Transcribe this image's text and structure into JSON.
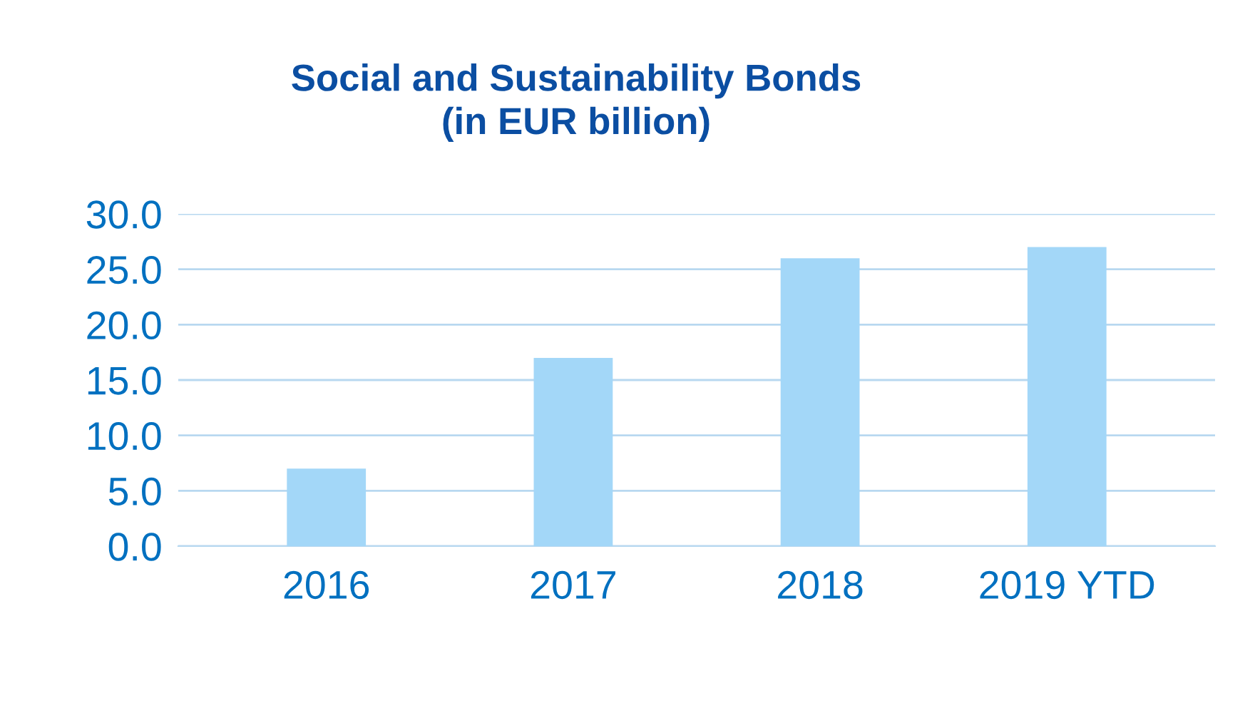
{
  "chart_data": {
    "type": "bar",
    "title": "Social and Sustainability Bonds\n(in EUR billion)",
    "categories": [
      "2016",
      "2017",
      "2018",
      "2019 YTD"
    ],
    "values": [
      7.0,
      17.0,
      26.0,
      27.0
    ],
    "color": "#a3d7f8",
    "ylim": [
      0,
      30
    ],
    "yticks": [
      {
        "value": 0,
        "label": "0.0"
      },
      {
        "value": 5,
        "label": "5.0"
      },
      {
        "value": 10,
        "label": "10.0"
      },
      {
        "value": 15,
        "label": "15.0"
      },
      {
        "value": 20,
        "label": "20.0"
      },
      {
        "value": 25,
        "label": "25.0"
      },
      {
        "value": 30,
        "label": "30.0"
      }
    ],
    "grid": "y",
    "legend": false
  }
}
